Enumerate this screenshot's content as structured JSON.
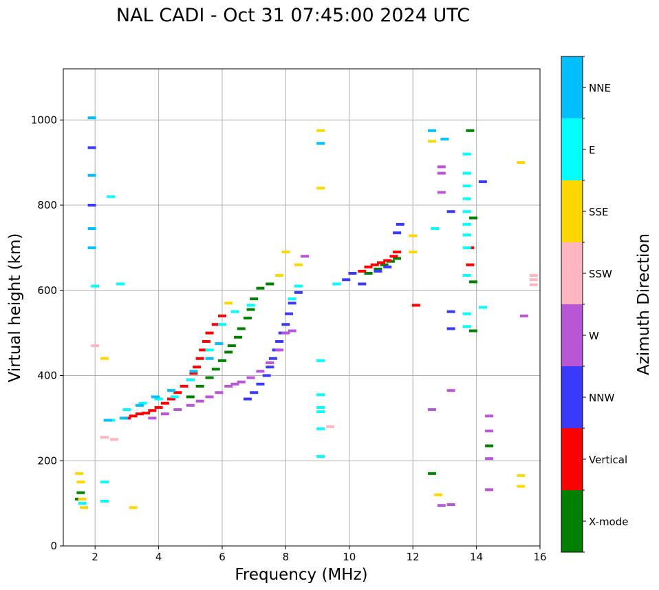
{
  "chart_data": {
    "type": "scatter",
    "title": "NAL CADI - Oct 31 07:45:00 2024 UTC",
    "xlabel": "Frequency (MHz)",
    "ylabel": "Virtual height (km)",
    "xlim": [
      1,
      16
    ],
    "ylim": [
      0,
      1120
    ],
    "xticks": [
      2,
      4,
      6,
      8,
      10,
      12,
      14,
      16
    ],
    "yticks": [
      0,
      200,
      400,
      600,
      800,
      1000
    ],
    "grid": true,
    "colorbar": {
      "label": "Azimuth Direction",
      "categories": [
        {
          "name": "X-mode",
          "color": "#008000"
        },
        {
          "name": "Vertical",
          "color": "#ff0000"
        },
        {
          "name": "NNW",
          "color": "#3a3aff"
        },
        {
          "name": "W",
          "color": "#b856d6"
        },
        {
          "name": "SSW",
          "color": "#ffb6c1"
        },
        {
          "name": "SSE",
          "color": "#ffd700"
        },
        {
          "name": "E",
          "color": "#00ffff"
        },
        {
          "name": "NNE",
          "color": "#00bfff"
        }
      ]
    },
    "series": [
      {
        "name": "X-mode",
        "points": [
          [
            1.5,
            110
          ],
          [
            1.55,
            125
          ],
          [
            5.0,
            350
          ],
          [
            5.3,
            375
          ],
          [
            5.6,
            395
          ],
          [
            5.8,
            415
          ],
          [
            6.0,
            435
          ],
          [
            6.2,
            455
          ],
          [
            6.3,
            470
          ],
          [
            6.5,
            490
          ],
          [
            6.6,
            510
          ],
          [
            6.8,
            535
          ],
          [
            6.9,
            555
          ],
          [
            7.0,
            580
          ],
          [
            7.2,
            605
          ],
          [
            7.5,
            615
          ],
          [
            10.6,
            640
          ],
          [
            10.9,
            650
          ],
          [
            11.1,
            660
          ],
          [
            11.3,
            668
          ],
          [
            11.5,
            675
          ],
          [
            12.6,
            170
          ],
          [
            13.8,
            975
          ],
          [
            13.9,
            770
          ],
          [
            13.9,
            620
          ],
          [
            13.9,
            505
          ],
          [
            14.4,
            235
          ]
        ]
      },
      {
        "name": "Vertical",
        "points": [
          [
            3.0,
            300
          ],
          [
            3.2,
            305
          ],
          [
            3.4,
            310
          ],
          [
            3.6,
            312
          ],
          [
            3.8,
            318
          ],
          [
            4.0,
            325
          ],
          [
            4.2,
            335
          ],
          [
            4.4,
            345
          ],
          [
            4.6,
            360
          ],
          [
            4.8,
            375
          ],
          [
            5.0,
            390
          ],
          [
            5.1,
            405
          ],
          [
            5.2,
            420
          ],
          [
            5.3,
            440
          ],
          [
            5.4,
            460
          ],
          [
            5.5,
            480
          ],
          [
            5.6,
            500
          ],
          [
            5.8,
            520
          ],
          [
            6.0,
            540
          ],
          [
            10.4,
            645
          ],
          [
            10.6,
            655
          ],
          [
            10.8,
            660
          ],
          [
            11.0,
            665
          ],
          [
            11.2,
            670
          ],
          [
            11.4,
            680
          ],
          [
            11.5,
            690
          ],
          [
            12.1,
            565
          ],
          [
            13.8,
            660
          ],
          [
            13.8,
            700
          ]
        ]
      },
      {
        "name": "NNW",
        "points": [
          [
            6.8,
            345
          ],
          [
            7.0,
            360
          ],
          [
            7.2,
            380
          ],
          [
            7.4,
            400
          ],
          [
            7.5,
            420
          ],
          [
            7.6,
            440
          ],
          [
            7.7,
            460
          ],
          [
            7.8,
            480
          ],
          [
            7.9,
            500
          ],
          [
            8.0,
            520
          ],
          [
            8.1,
            545
          ],
          [
            8.2,
            570
          ],
          [
            8.4,
            595
          ],
          [
            9.9,
            625
          ],
          [
            10.1,
            640
          ],
          [
            10.4,
            615
          ],
          [
            10.9,
            645
          ],
          [
            11.2,
            655
          ],
          [
            11.5,
            735
          ],
          [
            11.6,
            755
          ],
          [
            13.2,
            785
          ],
          [
            13.2,
            550
          ],
          [
            13.2,
            510
          ],
          [
            14.2,
            855
          ],
          [
            1.9,
            800
          ],
          [
            1.9,
            935
          ]
        ]
      },
      {
        "name": "W",
        "points": [
          [
            3.8,
            300
          ],
          [
            4.2,
            310
          ],
          [
            4.6,
            320
          ],
          [
            5.0,
            330
          ],
          [
            5.3,
            340
          ],
          [
            5.6,
            350
          ],
          [
            5.9,
            360
          ],
          [
            6.2,
            375
          ],
          [
            6.4,
            380
          ],
          [
            6.6,
            385
          ],
          [
            6.9,
            395
          ],
          [
            7.2,
            410
          ],
          [
            7.5,
            430
          ],
          [
            7.8,
            460
          ],
          [
            8.0,
            500
          ],
          [
            8.2,
            505
          ],
          [
            8.6,
            680
          ],
          [
            12.6,
            320
          ],
          [
            12.9,
            890
          ],
          [
            12.9,
            875
          ],
          [
            12.9,
            830
          ],
          [
            12.9,
            95
          ],
          [
            13.2,
            365
          ],
          [
            13.2,
            97
          ],
          [
            14.4,
            305
          ],
          [
            14.4,
            270
          ],
          [
            14.4,
            205
          ],
          [
            14.4,
            132
          ],
          [
            15.5,
            540
          ]
        ]
      },
      {
        "name": "SSW",
        "points": [
          [
            2.3,
            255
          ],
          [
            2.6,
            250
          ],
          [
            2.0,
            470
          ],
          [
            9.4,
            280
          ],
          [
            15.8,
            635
          ],
          [
            15.8,
            625
          ],
          [
            15.8,
            613
          ]
        ]
      },
      {
        "name": "SSE",
        "points": [
          [
            1.5,
            170
          ],
          [
            1.55,
            150
          ],
          [
            1.6,
            110
          ],
          [
            1.65,
            90
          ],
          [
            2.3,
            440
          ],
          [
            3.2,
            90
          ],
          [
            6.2,
            570
          ],
          [
            7.8,
            635
          ],
          [
            8.0,
            690
          ],
          [
            8.4,
            660
          ],
          [
            9.1,
            975
          ],
          [
            9.1,
            840
          ],
          [
            12.0,
            728
          ],
          [
            12.0,
            690
          ],
          [
            12.6,
            950
          ],
          [
            12.8,
            120
          ],
          [
            15.4,
            900
          ],
          [
            15.4,
            165
          ],
          [
            15.4,
            140
          ]
        ]
      },
      {
        "name": "E",
        "points": [
          [
            1.6,
            100
          ],
          [
            2.0,
            610
          ],
          [
            2.3,
            150
          ],
          [
            2.3,
            105
          ],
          [
            2.5,
            820
          ],
          [
            2.8,
            615
          ],
          [
            2.5,
            295
          ],
          [
            3.0,
            320
          ],
          [
            3.5,
            335
          ],
          [
            4.0,
            345
          ],
          [
            4.5,
            350
          ],
          [
            5.0,
            390
          ],
          [
            5.6,
            460
          ],
          [
            6.0,
            520
          ],
          [
            6.4,
            550
          ],
          [
            6.9,
            565
          ],
          [
            8.2,
            580
          ],
          [
            8.4,
            610
          ],
          [
            9.1,
            435
          ],
          [
            9.1,
            355
          ],
          [
            9.1,
            325
          ],
          [
            9.1,
            315
          ],
          [
            9.1,
            275
          ],
          [
            9.1,
            210
          ],
          [
            9.6,
            615
          ],
          [
            12.7,
            745
          ],
          [
            13.7,
            920
          ],
          [
            13.7,
            875
          ],
          [
            13.7,
            845
          ],
          [
            13.7,
            815
          ],
          [
            13.7,
            785
          ],
          [
            13.7,
            755
          ],
          [
            13.7,
            730
          ],
          [
            13.7,
            700
          ],
          [
            13.7,
            635
          ],
          [
            13.7,
            545
          ],
          [
            13.7,
            515
          ],
          [
            14.2,
            560
          ]
        ]
      },
      {
        "name": "NNE",
        "points": [
          [
            1.9,
            1005
          ],
          [
            1.9,
            870
          ],
          [
            1.9,
            745
          ],
          [
            1.9,
            700
          ],
          [
            2.4,
            295
          ],
          [
            2.9,
            300
          ],
          [
            3.4,
            330
          ],
          [
            3.9,
            350
          ],
          [
            4.4,
            365
          ],
          [
            5.1,
            410
          ],
          [
            5.6,
            440
          ],
          [
            5.9,
            475
          ],
          [
            9.1,
            945
          ],
          [
            12.6,
            975
          ],
          [
            13.0,
            955
          ]
        ]
      }
    ]
  }
}
